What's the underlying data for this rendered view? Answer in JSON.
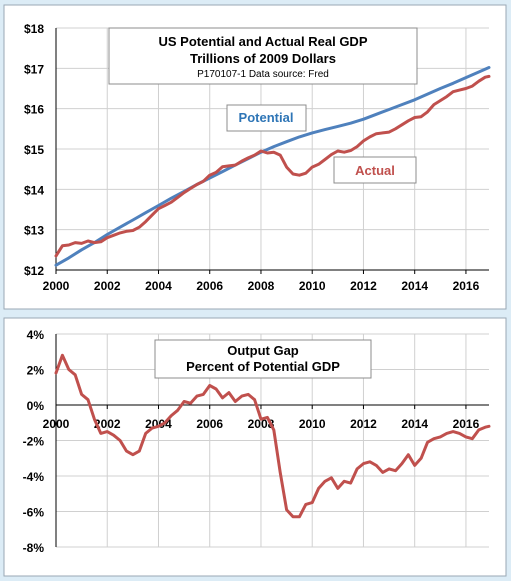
{
  "chart_data": [
    {
      "type": "line",
      "title": "US Potential and Actual Real GDP",
      "subtitle": "Trillions of 2009  Dollars",
      "note": "P170107-1 Data source: Fred",
      "xlim": [
        2000,
        2016.9
      ],
      "ylim": [
        12,
        18
      ],
      "x_ticks": [
        "2000",
        "2002",
        "2004",
        "2006",
        "2008",
        "2010",
        "2012",
        "2014",
        "2016"
      ],
      "y_ticks": [
        "$12",
        "$13",
        "$14",
        "$15",
        "$16",
        "$17",
        "$18"
      ],
      "grid": true,
      "series": [
        {
          "name": "Potential",
          "color": "#4f81bd",
          "points": [
            [
              2000,
              12.12
            ],
            [
              2000.5,
              12.3
            ],
            [
              2001,
              12.5
            ],
            [
              2001.5,
              12.68
            ],
            [
              2002,
              12.88
            ],
            [
              2002.5,
              13.06
            ],
            [
              2003,
              13.24
            ],
            [
              2003.5,
              13.42
            ],
            [
              2004,
              13.6
            ],
            [
              2004.5,
              13.78
            ],
            [
              2005,
              13.95
            ],
            [
              2005.5,
              14.12
            ],
            [
              2006,
              14.28
            ],
            [
              2006.5,
              14.44
            ],
            [
              2007,
              14.6
            ],
            [
              2007.5,
              14.76
            ],
            [
              2008,
              14.92
            ],
            [
              2008.5,
              15.06
            ],
            [
              2009,
              15.18
            ],
            [
              2009.5,
              15.3
            ],
            [
              2010,
              15.4
            ],
            [
              2010.5,
              15.48
            ],
            [
              2011,
              15.56
            ],
            [
              2011.5,
              15.64
            ],
            [
              2012,
              15.74
            ],
            [
              2012.5,
              15.86
            ],
            [
              2013,
              15.98
            ],
            [
              2013.5,
              16.1
            ],
            [
              2014,
              16.22
            ],
            [
              2014.5,
              16.36
            ],
            [
              2015,
              16.5
            ],
            [
              2015.5,
              16.63
            ],
            [
              2016,
              16.77
            ],
            [
              2016.5,
              16.91
            ],
            [
              2016.9,
              17.02
            ]
          ]
        },
        {
          "name": "Actual",
          "color": "#c0504d",
          "points": [
            [
              2000,
              12.35
            ],
            [
              2000.25,
              12.6
            ],
            [
              2000.5,
              12.62
            ],
            [
              2000.75,
              12.68
            ],
            [
              2001,
              12.66
            ],
            [
              2001.25,
              12.72
            ],
            [
              2001.5,
              12.68
            ],
            [
              2001.75,
              12.7
            ],
            [
              2002,
              12.8
            ],
            [
              2002.25,
              12.86
            ],
            [
              2002.5,
              12.92
            ],
            [
              2002.75,
              12.96
            ],
            [
              2003,
              12.98
            ],
            [
              2003.25,
              13.06
            ],
            [
              2003.5,
              13.2
            ],
            [
              2003.75,
              13.36
            ],
            [
              2004,
              13.52
            ],
            [
              2004.25,
              13.6
            ],
            [
              2004.5,
              13.68
            ],
            [
              2004.75,
              13.8
            ],
            [
              2005,
              13.92
            ],
            [
              2005.25,
              14.02
            ],
            [
              2005.5,
              14.12
            ],
            [
              2005.75,
              14.2
            ],
            [
              2006,
              14.35
            ],
            [
              2006.25,
              14.42
            ],
            [
              2006.5,
              14.56
            ],
            [
              2006.75,
              14.58
            ],
            [
              2007,
              14.6
            ],
            [
              2007.25,
              14.7
            ],
            [
              2007.5,
              14.78
            ],
            [
              2007.75,
              14.85
            ],
            [
              2008,
              14.95
            ],
            [
              2008.25,
              14.9
            ],
            [
              2008.5,
              14.92
            ],
            [
              2008.75,
              14.85
            ],
            [
              2009,
              14.55
            ],
            [
              2009.25,
              14.38
            ],
            [
              2009.5,
              14.35
            ],
            [
              2009.75,
              14.4
            ],
            [
              2010,
              14.55
            ],
            [
              2010.25,
              14.62
            ],
            [
              2010.5,
              14.74
            ],
            [
              2010.75,
              14.86
            ],
            [
              2011,
              14.95
            ],
            [
              2011.25,
              14.92
            ],
            [
              2011.5,
              14.96
            ],
            [
              2011.75,
              15.06
            ],
            [
              2012,
              15.2
            ],
            [
              2012.25,
              15.3
            ],
            [
              2012.5,
              15.38
            ],
            [
              2012.75,
              15.4
            ],
            [
              2013,
              15.42
            ],
            [
              2013.25,
              15.5
            ],
            [
              2013.5,
              15.6
            ],
            [
              2013.75,
              15.7
            ],
            [
              2014,
              15.78
            ],
            [
              2014.25,
              15.8
            ],
            [
              2014.5,
              15.92
            ],
            [
              2014.75,
              16.1
            ],
            [
              2015,
              16.2
            ],
            [
              2015.25,
              16.3
            ],
            [
              2015.5,
              16.42
            ],
            [
              2015.75,
              16.46
            ],
            [
              2016,
              16.5
            ],
            [
              2016.25,
              16.56
            ],
            [
              2016.5,
              16.68
            ],
            [
              2016.75,
              16.78
            ],
            [
              2016.9,
              16.8
            ]
          ]
        }
      ]
    },
    {
      "type": "line",
      "title": "Output Gap",
      "subtitle": "Percent of Potential GDP",
      "xlim": [
        2000,
        2016.9
      ],
      "ylim": [
        -8,
        4
      ],
      "x_ticks": [
        "2000",
        "2002",
        "2004",
        "2006",
        "2008",
        "2010",
        "2012",
        "2014",
        "2016"
      ],
      "y_ticks": [
        "4%",
        "2%",
        "0%",
        "-2%",
        "-4%",
        "-6%",
        "-8%"
      ],
      "grid": true,
      "series": [
        {
          "color": "#c0504d",
          "points": [
            [
              2000,
              1.8
            ],
            [
              2000.25,
              2.8
            ],
            [
              2000.5,
              2.0
            ],
            [
              2000.75,
              1.7
            ],
            [
              2001,
              0.6
            ],
            [
              2001.25,
              0.3
            ],
            [
              2001.5,
              -0.8
            ],
            [
              2001.75,
              -1.6
            ],
            [
              2002,
              -1.5
            ],
            [
              2002.25,
              -1.7
            ],
            [
              2002.5,
              -2.0
            ],
            [
              2002.75,
              -2.6
            ],
            [
              2003,
              -2.8
            ],
            [
              2003.25,
              -2.6
            ],
            [
              2003.5,
              -1.6
            ],
            [
              2003.75,
              -1.3
            ],
            [
              2004,
              -1.2
            ],
            [
              2004.25,
              -1.0
            ],
            [
              2004.5,
              -0.6
            ],
            [
              2004.75,
              -0.3
            ],
            [
              2005,
              0.2
            ],
            [
              2005.25,
              0.1
            ],
            [
              2005.5,
              0.5
            ],
            [
              2005.75,
              0.6
            ],
            [
              2006,
              1.1
            ],
            [
              2006.25,
              0.9
            ],
            [
              2006.5,
              0.4
            ],
            [
              2006.75,
              0.7
            ],
            [
              2007,
              0.2
            ],
            [
              2007.25,
              0.5
            ],
            [
              2007.5,
              0.6
            ],
            [
              2007.75,
              0.3
            ],
            [
              2008,
              -0.8
            ],
            [
              2008.25,
              -0.7
            ],
            [
              2008.5,
              -1.4
            ],
            [
              2008.75,
              -3.8
            ],
            [
              2009,
              -5.9
            ],
            [
              2009.25,
              -6.3
            ],
            [
              2009.5,
              -6.3
            ],
            [
              2009.75,
              -5.6
            ],
            [
              2010,
              -5.5
            ],
            [
              2010.25,
              -4.7
            ],
            [
              2010.5,
              -4.3
            ],
            [
              2010.75,
              -4.1
            ],
            [
              2011,
              -4.7
            ],
            [
              2011.25,
              -4.3
            ],
            [
              2011.5,
              -4.4
            ],
            [
              2011.75,
              -3.6
            ],
            [
              2012,
              -3.3
            ],
            [
              2012.25,
              -3.2
            ],
            [
              2012.5,
              -3.4
            ],
            [
              2012.75,
              -3.8
            ],
            [
              2013,
              -3.6
            ],
            [
              2013.25,
              -3.7
            ],
            [
              2013.5,
              -3.3
            ],
            [
              2013.75,
              -2.8
            ],
            [
              2014,
              -3.4
            ],
            [
              2014.25,
              -3.0
            ],
            [
              2014.5,
              -2.1
            ],
            [
              2014.75,
              -1.9
            ],
            [
              2015,
              -1.8
            ],
            [
              2015.25,
              -1.6
            ],
            [
              2015.5,
              -1.5
            ],
            [
              2015.75,
              -1.6
            ],
            [
              2016,
              -1.8
            ],
            [
              2016.25,
              -1.9
            ],
            [
              2016.5,
              -1.4
            ],
            [
              2016.75,
              -1.25
            ],
            [
              2016.9,
              -1.2
            ]
          ]
        }
      ]
    }
  ]
}
